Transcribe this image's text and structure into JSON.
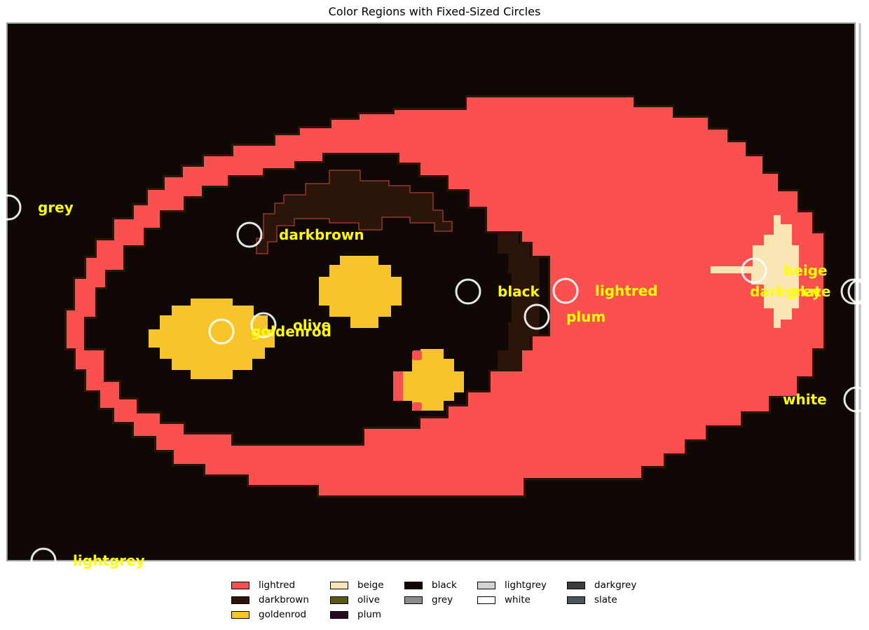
{
  "title": "Color Regions with Fixed-Sized Circles",
  "colors": {
    "background": "#100804",
    "lightred": "#fa5050",
    "darkbrown": "#2a1508",
    "goldenrod": "#f8c42c",
    "beige": "#fae6b4",
    "olive": "#5a5a14",
    "black": "#100804",
    "grey": "#8c8c8c",
    "lightgrey": "#d2d2d2",
    "white": "#ffffff",
    "darkgrey": "#3c3c3c",
    "slate": "#4b5559",
    "plum": "#2a0a1e",
    "circle_stroke": "#ffffff",
    "label_color": "#ffff00"
  },
  "circles": [
    {
      "label": "grey"
    },
    {
      "label": "darkbrown"
    },
    {
      "label": "olive"
    },
    {
      "label": "goldenrod"
    },
    {
      "label": "black"
    },
    {
      "label": "lightred"
    },
    {
      "label": "plum"
    },
    {
      "label": "beige"
    },
    {
      "label": "darkgrey"
    },
    {
      "label": "slate"
    },
    {
      "label": "white"
    },
    {
      "label": "lightgrey"
    }
  ],
  "legend": {
    "items": [
      {
        "label": "lightred",
        "color": "#fa5050"
      },
      {
        "label": "darkbrown",
        "color": "#2a1508"
      },
      {
        "label": "goldenrod",
        "color": "#f8c42c"
      },
      {
        "label": "beige",
        "color": "#fae6b4"
      },
      {
        "label": "olive",
        "color": "#5a5a14"
      },
      {
        "label": "plum",
        "color": "#2a0a1e"
      },
      {
        "label": "black",
        "color": "#100804"
      },
      {
        "label": "grey",
        "color": "#8c8c8c"
      },
      {
        "label": "lightgrey",
        "color": "#d2d2d2"
      },
      {
        "label": "white",
        "color": "#ffffff"
      },
      {
        "label": "darkgrey",
        "color": "#3c3c3c"
      },
      {
        "label": "slate",
        "color": "#4b5559"
      }
    ]
  }
}
